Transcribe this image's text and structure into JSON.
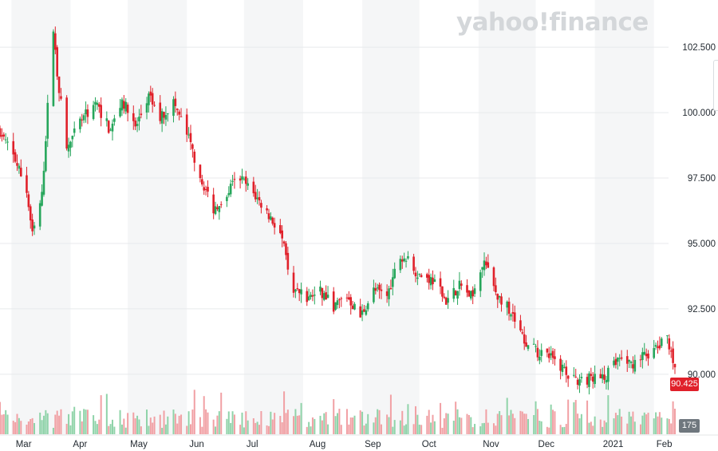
{
  "logo_text": "yahoo!finance",
  "chart_data": {
    "type": "candlestick",
    "title": "",
    "xlabel": "",
    "ylabel": "",
    "ylim": [
      88.5,
      104.0
    ],
    "grid": true,
    "y_ticks": [
      "102.500",
      "100.000",
      "97.500",
      "95.000",
      "92.500",
      "90.000"
    ],
    "y_tick_values": [
      102.5,
      100.0,
      97.5,
      95.0,
      92.5,
      90.0
    ],
    "x_tick_labels": [
      "Mar",
      "Apr",
      "May",
      "Jun",
      "Jul",
      "Aug",
      "Sep",
      "Oct",
      "Nov",
      "Dec",
      "2021",
      "Feb"
    ],
    "x_tick_dates": [
      "2020-03-02",
      "2020-04-01",
      "2020-05-01",
      "2020-06-01",
      "2020-07-01",
      "2020-08-03",
      "2020-09-01",
      "2020-10-01",
      "2020-11-02",
      "2020-12-01",
      "2021-01-04",
      "2021-02-01"
    ],
    "start_date": "2020-02-24",
    "end_date": "2021-02-12",
    "close_path_dates": [
      "2020-02-24",
      "2020-03-03",
      "2020-03-09",
      "2020-03-12",
      "2020-03-17",
      "2020-03-20",
      "2020-03-23",
      "2020-03-25",
      "2020-03-30",
      "2020-04-06",
      "2020-04-14",
      "2020-04-22",
      "2020-04-28",
      "2020-05-05",
      "2020-05-12",
      "2020-05-18",
      "2020-05-25",
      "2020-06-01",
      "2020-06-08",
      "2020-06-15",
      "2020-06-22",
      "2020-06-29",
      "2020-07-06",
      "2020-07-13",
      "2020-07-20",
      "2020-07-27",
      "2020-08-03",
      "2020-08-10",
      "2020-08-17",
      "2020-08-24",
      "2020-08-31",
      "2020-09-07",
      "2020-09-14",
      "2020-09-21",
      "2020-09-25",
      "2020-10-01",
      "2020-10-08",
      "2020-10-15",
      "2020-10-22",
      "2020-10-29",
      "2020-11-04",
      "2020-11-11",
      "2020-11-18",
      "2020-11-25",
      "2020-12-02",
      "2020-12-09",
      "2020-12-16",
      "2020-12-23",
      "2020-12-30",
      "2021-01-06",
      "2021-01-13",
      "2021-01-20",
      "2021-01-27",
      "2021-02-03",
      "2021-02-08",
      "2021-02-12"
    ],
    "close_path_values": [
      99.3,
      98.2,
      97.0,
      95.3,
      96.8,
      100.2,
      103.2,
      101.5,
      98.6,
      99.6,
      100.4,
      99.3,
      100.5,
      99.4,
      100.6,
      99.8,
      100.4,
      99.2,
      97.6,
      96.3,
      97.0,
      97.5,
      96.9,
      96.2,
      95.4,
      93.2,
      92.9,
      93.2,
      92.6,
      93.0,
      92.2,
      93.2,
      93.0,
      94.6,
      94.3,
      93.8,
      93.6,
      92.8,
      93.4,
      92.9,
      94.3,
      93.0,
      92.4,
      91.3,
      90.8,
      90.6,
      90.2,
      89.6,
      89.9,
      89.8,
      90.6,
      90.4,
      90.7,
      91.0,
      91.4,
      90.4
    ],
    "last_price": "90.425",
    "volume_label": "175",
    "colors": {
      "up": "#26a65b",
      "down": "#e0202a",
      "up_volume": "#8fd3a9",
      "down_volume": "#f1a0a4",
      "grid_band": "#f5f6f7"
    }
  }
}
